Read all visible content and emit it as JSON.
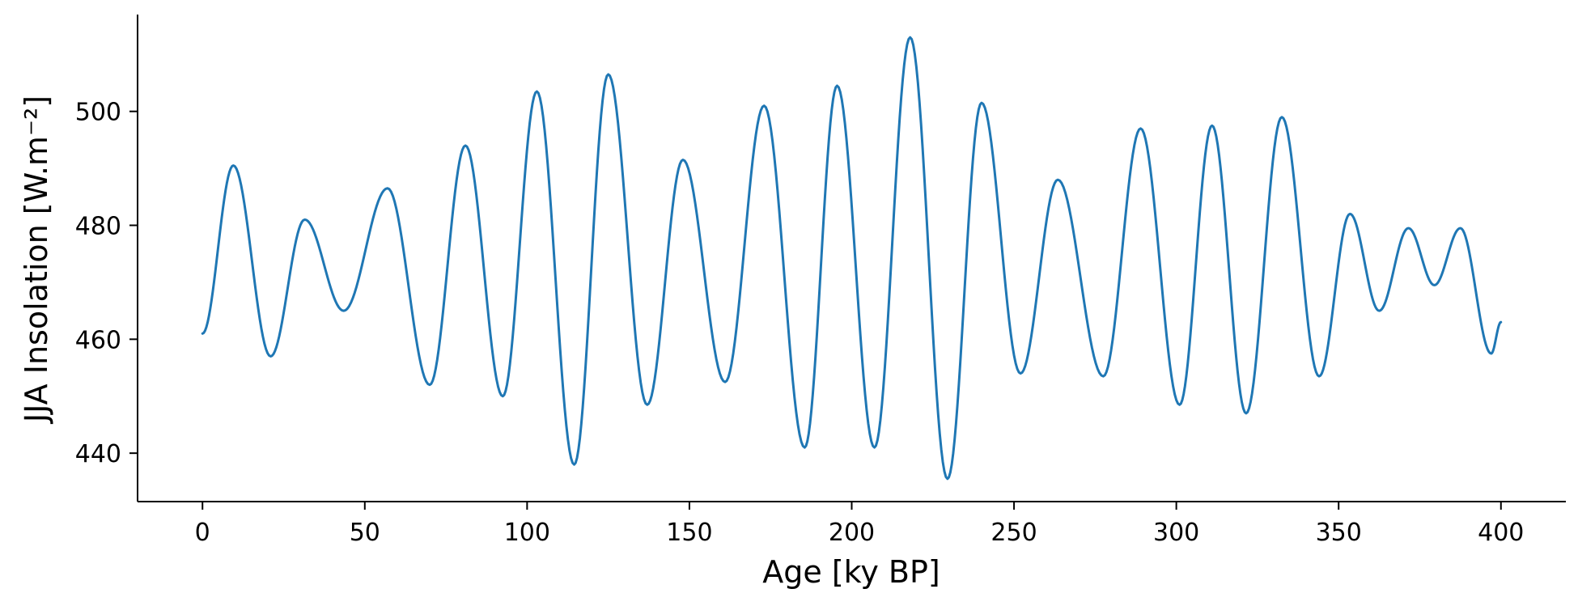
{
  "chart_data": {
    "type": "line",
    "xlabel": "Age [ky BP]",
    "ylabel": "JJA Insolation [W.m⁻²]",
    "xlim": [
      -20,
      420
    ],
    "ylim": [
      431.5,
      517
    ],
    "xticks": [
      0,
      50,
      100,
      150,
      200,
      250,
      300,
      350,
      400
    ],
    "yticks": [
      440,
      460,
      480,
      500
    ],
    "grid": false,
    "legend": "none",
    "series_color": "#1f77b4",
    "extrema": [
      {
        "x": 0,
        "y": 461
      },
      {
        "x": 9.5,
        "y": 490.5
      },
      {
        "x": 21,
        "y": 457
      },
      {
        "x": 31.5,
        "y": 481
      },
      {
        "x": 43.5,
        "y": 465
      },
      {
        "x": 57,
        "y": 486.5
      },
      {
        "x": 70,
        "y": 452
      },
      {
        "x": 81,
        "y": 494
      },
      {
        "x": 92.5,
        "y": 450
      },
      {
        "x": 103,
        "y": 503.5
      },
      {
        "x": 114.5,
        "y": 438
      },
      {
        "x": 125,
        "y": 506.5
      },
      {
        "x": 137,
        "y": 448.5
      },
      {
        "x": 148,
        "y": 491.5
      },
      {
        "x": 161,
        "y": 452.5
      },
      {
        "x": 173,
        "y": 501
      },
      {
        "x": 185.5,
        "y": 441
      },
      {
        "x": 195.5,
        "y": 504.5
      },
      {
        "x": 207,
        "y": 441
      },
      {
        "x": 218,
        "y": 513
      },
      {
        "x": 229.5,
        "y": 435.5
      },
      {
        "x": 240,
        "y": 501.5
      },
      {
        "x": 252,
        "y": 454
      },
      {
        "x": 263.5,
        "y": 488
      },
      {
        "x": 277.5,
        "y": 453.5
      },
      {
        "x": 289,
        "y": 497
      },
      {
        "x": 301,
        "y": 448.5
      },
      {
        "x": 311,
        "y": 497.5
      },
      {
        "x": 321.5,
        "y": 447
      },
      {
        "x": 332.5,
        "y": 499
      },
      {
        "x": 344,
        "y": 453.5
      },
      {
        "x": 353.5,
        "y": 482
      },
      {
        "x": 362.5,
        "y": 465
      },
      {
        "x": 371.5,
        "y": 479.5
      },
      {
        "x": 379.5,
        "y": 469.5
      },
      {
        "x": 387.5,
        "y": 479.5
      },
      {
        "x": 397,
        "y": 457.5
      },
      {
        "x": 400,
        "y": 463
      }
    ]
  }
}
